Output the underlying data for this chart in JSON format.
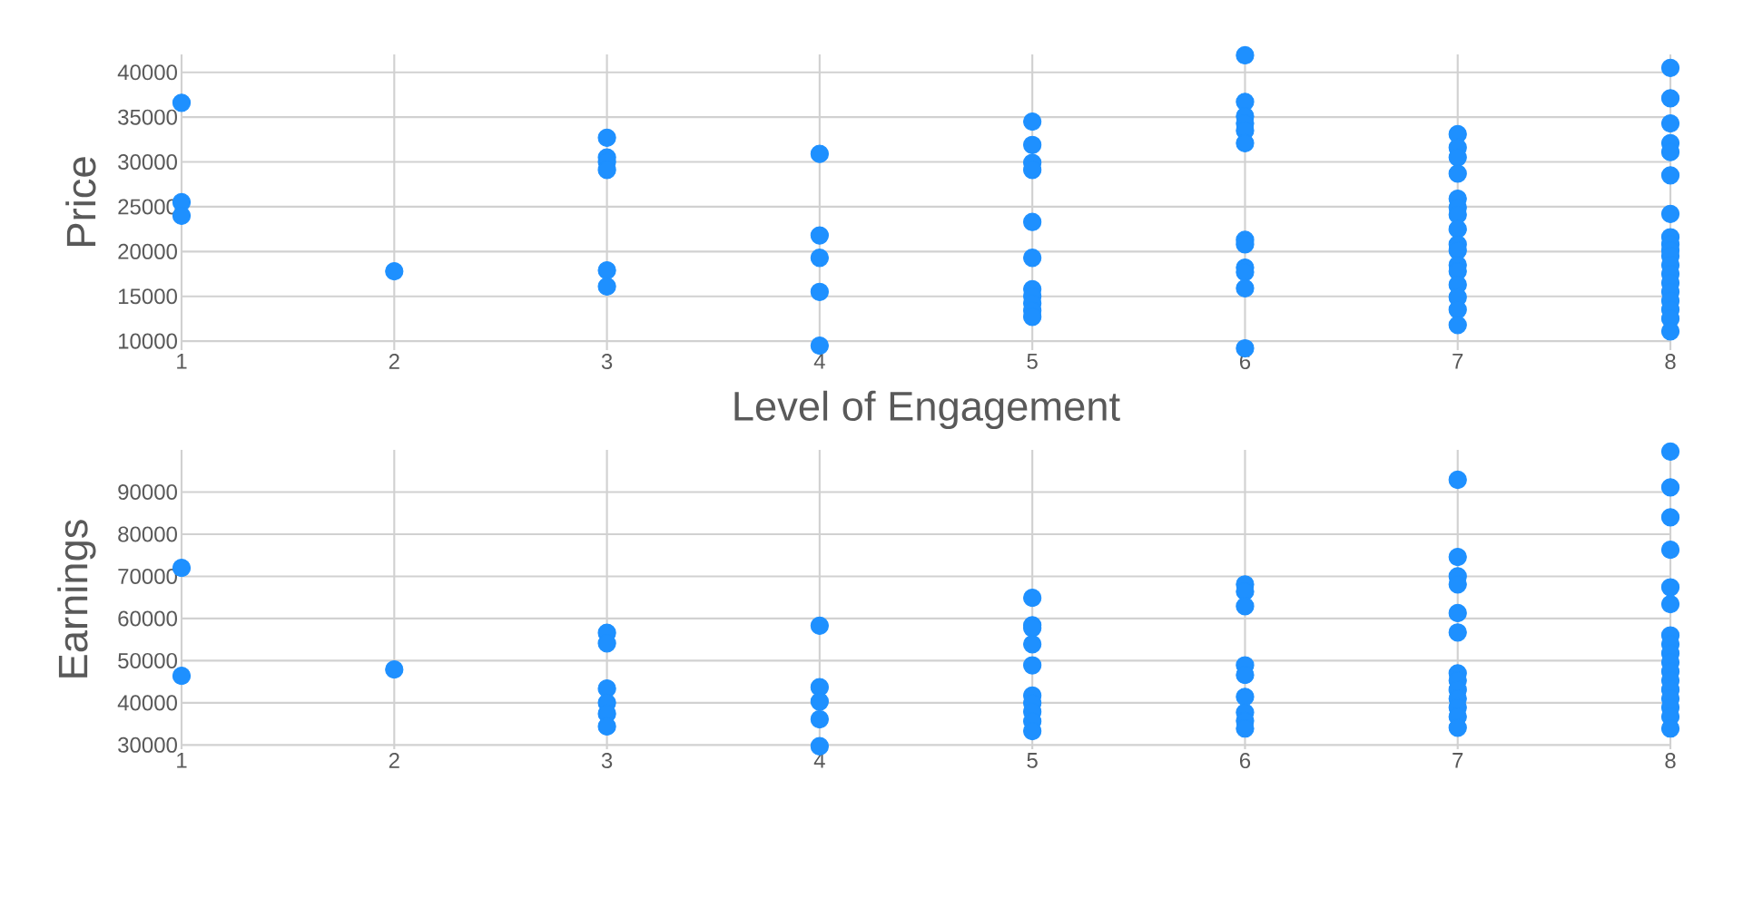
{
  "chart_data": [
    {
      "type": "scatter",
      "xlabel": "Level of Engagement",
      "ylabel": "Price",
      "color": "#1e90ff",
      "marker": "circle",
      "grid": true,
      "x": [
        1,
        1,
        1,
        2,
        3,
        3,
        3,
        3,
        3,
        3,
        4,
        4,
        4,
        4,
        4,
        5,
        5,
        5,
        5,
        5,
        5,
        5,
        5,
        5,
        5,
        5,
        6,
        6,
        6,
        6,
        6,
        6,
        6,
        6,
        6,
        6,
        6,
        6,
        7,
        7,
        7,
        7,
        7,
        7,
        7,
        7,
        7,
        7,
        7,
        7,
        7,
        7,
        7,
        7,
        8,
        8,
        8,
        8,
        8,
        8,
        8,
        8,
        8,
        8,
        8,
        8,
        8,
        8,
        8,
        8,
        8,
        8,
        8
      ],
      "values": [
        36600,
        25500,
        24000,
        17800,
        32700,
        30500,
        30000,
        29100,
        17900,
        16100,
        30900,
        21800,
        19300,
        15500,
        9500,
        34500,
        31900,
        29900,
        29100,
        23300,
        19300,
        15800,
        15000,
        14200,
        13400,
        12700,
        41900,
        36700,
        35100,
        34300,
        33500,
        32100,
        21300,
        20800,
        18200,
        17700,
        15900,
        9200,
        33100,
        31600,
        30500,
        28700,
        25900,
        24900,
        24100,
        22500,
        20800,
        20100,
        18500,
        17800,
        16300,
        14900,
        13500,
        11800,
        40500,
        37100,
        34300,
        32100,
        31100,
        28500,
        24200,
        21600,
        20800,
        20100,
        19500,
        18500,
        17500,
        16500,
        15500,
        14500,
        13500,
        12500,
        11100
      ],
      "xlim": [
        1,
        8
      ],
      "ylim": [
        9000,
        42000
      ],
      "xticks": [
        1,
        2,
        3,
        4,
        5,
        6,
        7,
        8
      ],
      "yticks": [
        10000,
        15000,
        20000,
        25000,
        30000,
        35000,
        40000
      ]
    },
    {
      "type": "scatter",
      "ylabel": "Earnings",
      "color": "#1e90ff",
      "marker": "circle",
      "grid": true,
      "x": [
        1,
        1,
        2,
        3,
        3,
        3,
        3,
        3,
        3,
        4,
        4,
        4,
        4,
        4,
        5,
        5,
        5,
        5,
        5,
        5,
        5,
        5,
        5,
        5,
        6,
        6,
        6,
        6,
        6,
        6,
        6,
        6,
        6,
        7,
        7,
        7,
        7,
        7,
        7,
        7,
        7,
        7,
        7,
        7,
        7,
        7,
        8,
        8,
        8,
        8,
        8,
        8,
        8,
        8,
        8,
        8,
        8,
        8,
        8,
        8,
        8,
        8,
        8
      ],
      "values": [
        72000,
        46400,
        47900,
        56600,
        54100,
        43400,
        40000,
        37400,
        34400,
        58300,
        43700,
        40300,
        36100,
        29700,
        64900,
        58400,
        57700,
        53900,
        48900,
        41700,
        39900,
        37900,
        35600,
        33300,
        68100,
        66400,
        62900,
        48900,
        46600,
        41400,
        37700,
        35700,
        33900,
        92900,
        74600,
        70000,
        68100,
        61300,
        56700,
        47000,
        45300,
        43100,
        41000,
        38900,
        36700,
        34100,
        99600,
        91100,
        84000,
        76300,
        67400,
        63400,
        56000,
        53900,
        51700,
        49600,
        47400,
        45300,
        43100,
        41000,
        38900,
        36700,
        33900
      ],
      "xlim": [
        1,
        8
      ],
      "ylim": [
        29000,
        100000
      ],
      "xticks": [
        1,
        2,
        3,
        4,
        5,
        6,
        7,
        8
      ],
      "yticks": [
        30000,
        40000,
        50000,
        60000,
        70000,
        80000,
        90000
      ]
    }
  ]
}
